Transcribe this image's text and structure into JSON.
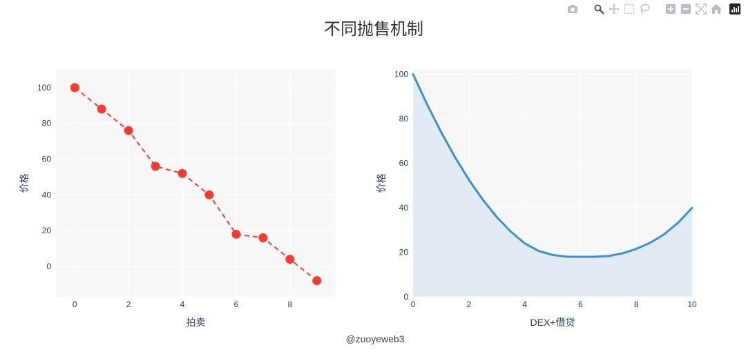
{
  "title": "不同抛售机制",
  "watermark": "@zuoyeweb3",
  "colors": {
    "plot_bg": "#f7f7f7",
    "grid": "#ffffff",
    "axis_text": "#2a3f5f",
    "red": "#fb3a2e",
    "blue": "#3a8fd6",
    "fill": "#e2ebf4"
  },
  "modebar": {
    "icons": [
      "camera-icon",
      "zoom-icon",
      "pan-icon",
      "box-select-icon",
      "lasso-icon",
      "zoom-in-icon",
      "zoom-out-icon",
      "autoscale-icon",
      "home-icon",
      "plotly-logo-icon"
    ]
  },
  "chart_data": [
    {
      "type": "line",
      "mode": "lines+markers",
      "line_style": "dashed",
      "color": "#fb3a2e",
      "xlabel": "拍卖",
      "ylabel": "价格",
      "x": [
        0,
        1,
        2,
        3,
        4,
        5,
        6,
        7,
        8,
        9
      ],
      "y": [
        100,
        88,
        76,
        56,
        52,
        40,
        18,
        16,
        4,
        -8
      ],
      "xlim": [
        -0.7,
        9.7
      ],
      "ylim": [
        -17,
        110
      ],
      "xticks": [
        0,
        2,
        4,
        6,
        8
      ],
      "yticks": [
        0,
        20,
        40,
        60,
        80,
        100
      ],
      "grid": true
    },
    {
      "type": "area",
      "color": "#3a8fd6",
      "xlabel": "DEX+借贷",
      "ylabel": "价格",
      "x": [
        0,
        0.5,
        1,
        1.5,
        2,
        2.5,
        3,
        3.5,
        4,
        4.5,
        5,
        5.5,
        6,
        6.5,
        7,
        7.5,
        8,
        8.5,
        9,
        9.5,
        10
      ],
      "y": [
        100,
        86.5,
        74.1,
        62.8,
        52.6,
        43.6,
        35.8,
        29.3,
        24.0,
        20.6,
        18.8,
        18.0,
        18.0,
        18.0,
        18.3,
        19.5,
        21.5,
        24.3,
        28.1,
        33.3,
        40
      ],
      "xlim": [
        0,
        10
      ],
      "ylim": [
        0,
        102
      ],
      "xticks": [
        0,
        2,
        4,
        6,
        8,
        10
      ],
      "yticks": [
        0,
        20,
        40,
        60,
        80,
        100
      ],
      "grid": true
    }
  ]
}
